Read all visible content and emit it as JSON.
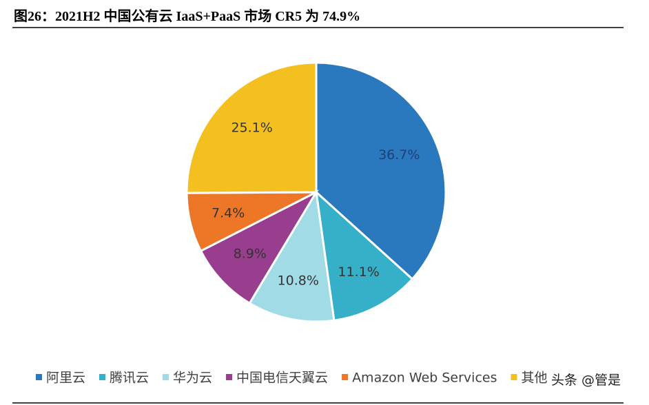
{
  "chart_data": {
    "type": "pie",
    "title": "图26：2021H2 中国公有云 IaaS+PaaS 市场 CR5 为 74.9%",
    "categories": [
      "阿里云",
      "腾讯云",
      "华为云",
      "中国电信天翼云",
      "Amazon Web Services",
      "其他"
    ],
    "values": [
      36.7,
      11.1,
      10.8,
      8.9,
      7.4,
      25.1
    ],
    "value_labels": [
      "36.7%",
      "11.1%",
      "10.8%",
      "8.9%",
      "7.4%",
      "25.1%"
    ],
    "colors": [
      "#2a78be",
      "#35b0c8",
      "#a1dbe6",
      "#993e8f",
      "#ed7727",
      "#f4c020"
    ],
    "legend": "bottom",
    "watermark": "头条 @管是"
  }
}
